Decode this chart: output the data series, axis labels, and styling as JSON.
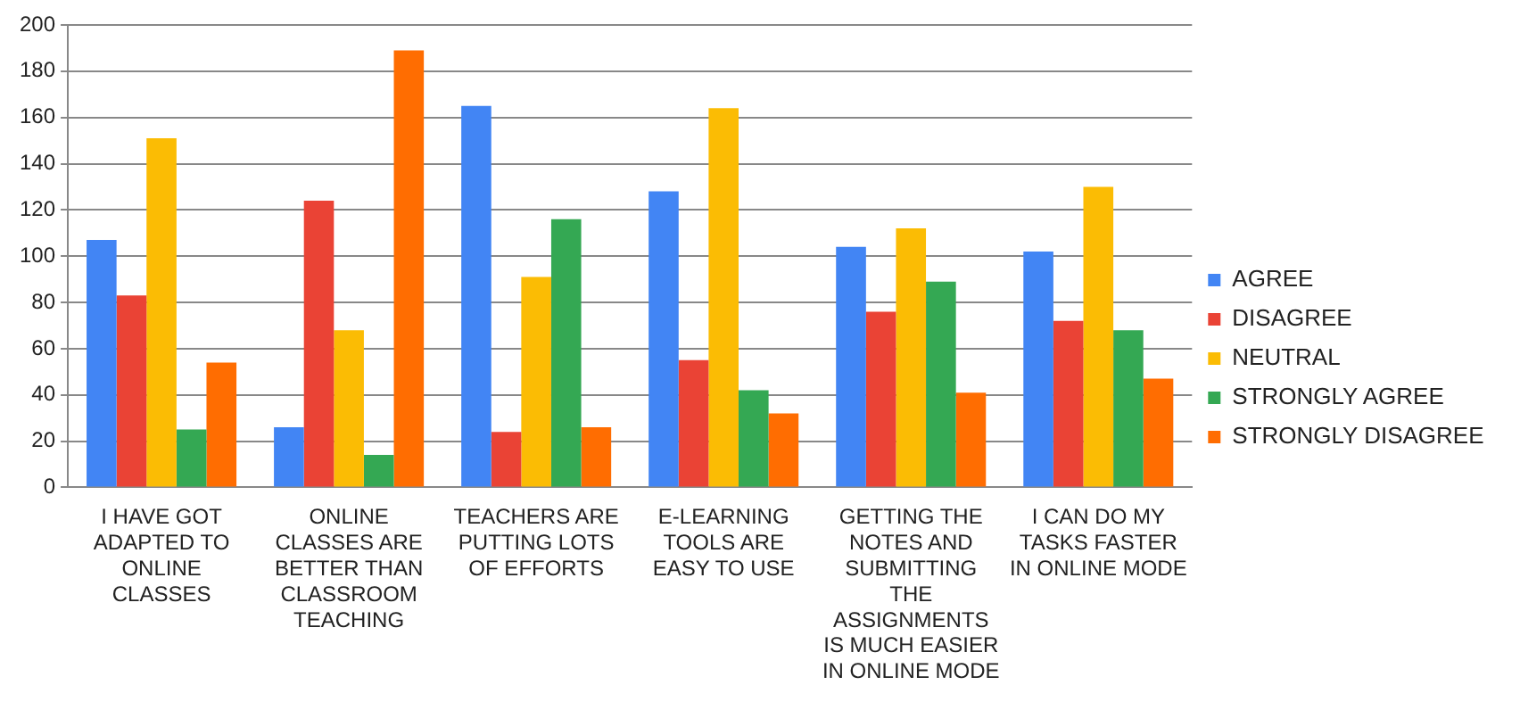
{
  "chart_data": {
    "type": "bar",
    "categories": [
      "I HAVE GOT ADAPTED TO ONLINE CLASSES",
      "ONLINE CLASSES ARE BETTER THAN CLASSROOM TEACHING",
      "TEACHERS ARE PUTTING LOTS OF EFFORTS",
      "E-LEARNING TOOLS ARE EASY TO USE",
      "GETTING THE NOTES AND SUBMITTING THE ASSIGNMENTS IS MUCH EASIER IN ONLINE MODE",
      "I CAN DO MY TASKS FASTER IN ONLINE MODE"
    ],
    "series": [
      {
        "name": "AGREE",
        "color": "#4285f4",
        "values": [
          107,
          26,
          165,
          128,
          104,
          102
        ]
      },
      {
        "name": "DISAGREE",
        "color": "#ea4335",
        "values": [
          83,
          124,
          24,
          55,
          76,
          72
        ]
      },
      {
        "name": "NEUTRAL",
        "color": "#fbbc04",
        "values": [
          151,
          68,
          91,
          164,
          112,
          130
        ]
      },
      {
        "name": "STRONGLY AGREE",
        "color": "#34a853",
        "values": [
          25,
          14,
          116,
          42,
          89,
          68
        ]
      },
      {
        "name": "STRONGLY DISAGREE",
        "color": "#ff6d01",
        "values": [
          54,
          189,
          26,
          32,
          41,
          47
        ]
      }
    ],
    "ylim": [
      0,
      200
    ],
    "yticks": [
      0,
      20,
      40,
      60,
      80,
      100,
      120,
      140,
      160,
      180,
      200
    ],
    "grid": "y",
    "legend": "right"
  }
}
